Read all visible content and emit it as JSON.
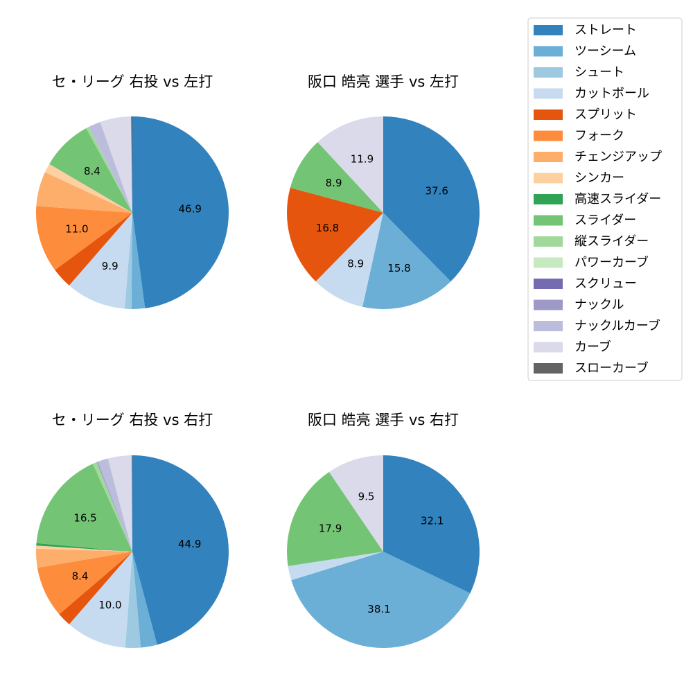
{
  "legend": {
    "placement": "top-right",
    "entries": [
      {
        "name": "ストレート",
        "color": "#3182bd"
      },
      {
        "name": "ツーシーム",
        "color": "#6baed6"
      },
      {
        "name": "シュート",
        "color": "#9ecae1"
      },
      {
        "name": "カットボール",
        "color": "#c6dbef"
      },
      {
        "name": "スプリット",
        "color": "#e6550d"
      },
      {
        "name": "フォーク",
        "color": "#fd8d3c"
      },
      {
        "name": "チェンジアップ",
        "color": "#fdae6b"
      },
      {
        "name": "シンカー",
        "color": "#fdd0a2"
      },
      {
        "name": "高速スライダー",
        "color": "#31a354"
      },
      {
        "name": "スライダー",
        "color": "#74c476"
      },
      {
        "name": "縦スライダー",
        "color": "#a1d99b"
      },
      {
        "name": "パワーカーブ",
        "color": "#c7e9c0"
      },
      {
        "name": "スクリュー",
        "color": "#756bb1"
      },
      {
        "name": "ナックル",
        "color": "#9e9ac8"
      },
      {
        "name": "ナックルカーブ",
        "color": "#bcbddc"
      },
      {
        "name": "カーブ",
        "color": "#dadaeb"
      },
      {
        "name": "スローカーブ",
        "color": "#636363"
      }
    ]
  },
  "chart_data": [
    {
      "type": "pie",
      "title": "セ・リーグ 右投 vs 左打",
      "start_angle_deg": 90,
      "direction": "clockwise",
      "label_min": 8,
      "slices": [
        {
          "name": "ストレート",
          "value": 46.9
        },
        {
          "name": "ツーシーム",
          "value": 2.2
        },
        {
          "name": "シュート",
          "value": 1.1
        },
        {
          "name": "カットボール",
          "value": 9.9
        },
        {
          "name": "スプリット",
          "value": 3.4
        },
        {
          "name": "フォーク",
          "value": 11.0
        },
        {
          "name": "チェンジアップ",
          "value": 5.7
        },
        {
          "name": "シンカー",
          "value": 1.5
        },
        {
          "name": "スライダー",
          "value": 8.4
        },
        {
          "name": "縦スライダー",
          "value": 0.5
        },
        {
          "name": "ナックルカーブ",
          "value": 2.0
        },
        {
          "name": "カーブ",
          "value": 5.1
        },
        {
          "name": "スローカーブ",
          "value": 0.2
        }
      ]
    },
    {
      "type": "pie",
      "title": "阪口 皓亮 選手 vs 左打",
      "start_angle_deg": 90,
      "direction": "clockwise",
      "label_min": 8,
      "slices": [
        {
          "name": "ストレート",
          "value": 37.6
        },
        {
          "name": "ツーシーム",
          "value": 15.8
        },
        {
          "name": "カットボール",
          "value": 8.9
        },
        {
          "name": "スプリット",
          "value": 16.8
        },
        {
          "name": "スライダー",
          "value": 8.9
        },
        {
          "name": "カーブ",
          "value": 11.9
        }
      ]
    },
    {
      "type": "pie",
      "title": "セ・リーグ 右投 vs 右打",
      "start_angle_deg": 90,
      "direction": "clockwise",
      "label_min": 8,
      "slices": [
        {
          "name": "ストレート",
          "value": 44.9
        },
        {
          "name": "ツーシーム",
          "value": 2.7
        },
        {
          "name": "シュート",
          "value": 2.5
        },
        {
          "name": "カットボール",
          "value": 10.0
        },
        {
          "name": "スプリット",
          "value": 2.3
        },
        {
          "name": "フォーク",
          "value": 8.4
        },
        {
          "name": "チェンジアップ",
          "value": 3.1
        },
        {
          "name": "シンカー",
          "value": 0.5
        },
        {
          "name": "高速スライダー",
          "value": 0.4
        },
        {
          "name": "スライダー",
          "value": 16.5
        },
        {
          "name": "縦スライダー",
          "value": 0.7
        },
        {
          "name": "ナックル",
          "value": 0.2
        },
        {
          "name": "ナックルカーブ",
          "value": 1.7
        },
        {
          "name": "カーブ",
          "value": 3.9
        },
        {
          "name": "スローカーブ",
          "value": 0.1
        }
      ]
    },
    {
      "type": "pie",
      "title": "阪口 皓亮 選手 vs 右打",
      "start_angle_deg": 90,
      "direction": "clockwise",
      "label_min": 8,
      "slices": [
        {
          "name": "ストレート",
          "value": 32.1
        },
        {
          "name": "ツーシーム",
          "value": 38.1
        },
        {
          "name": "カットボール",
          "value": 2.4
        },
        {
          "name": "スライダー",
          "value": 17.9
        },
        {
          "name": "カーブ",
          "value": 9.5
        }
      ]
    }
  ]
}
